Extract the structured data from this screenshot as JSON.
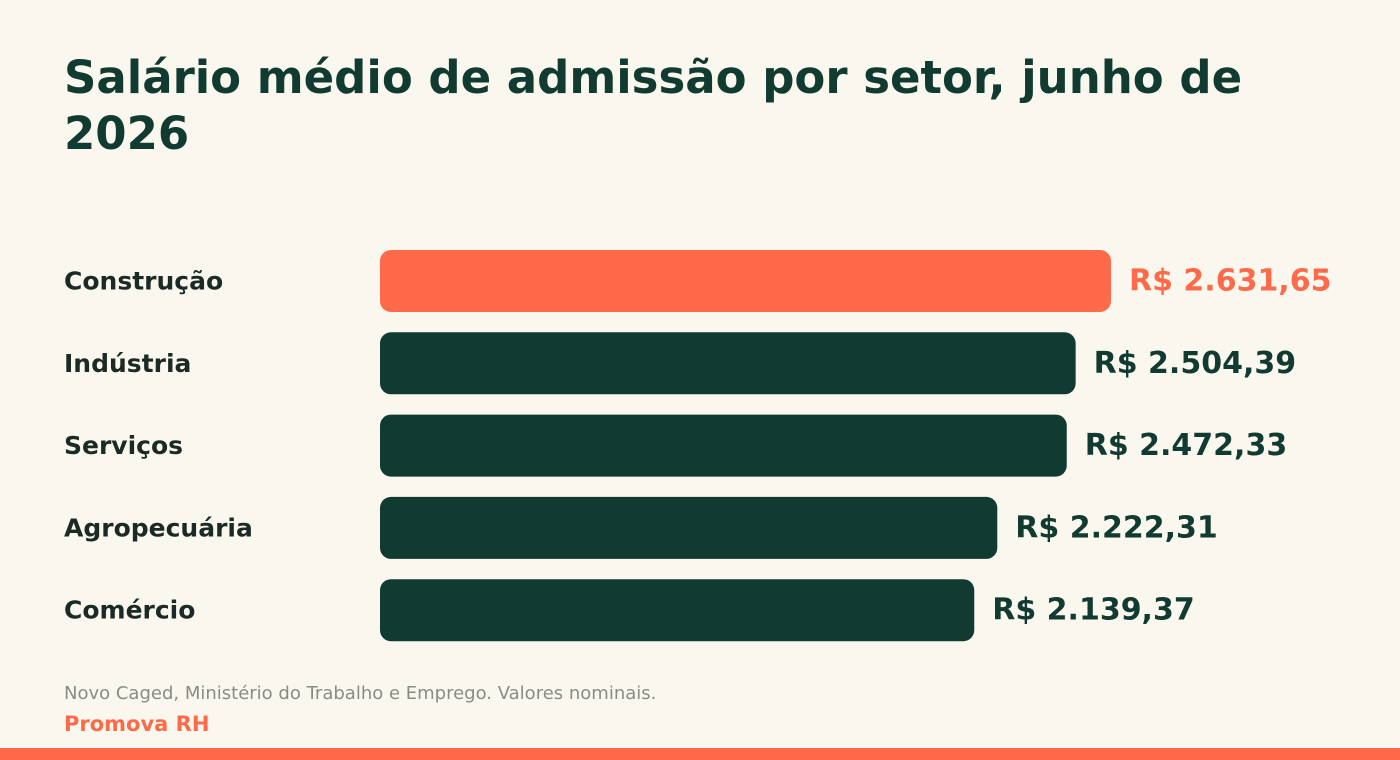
{
  "chart_data": {
    "type": "bar",
    "orientation": "horizontal",
    "title": "Salário médio de admissão por setor, junho de 2026",
    "categories": [
      "Construção",
      "Indústria",
      "Serviços",
      "Agropecuária",
      "Comércio"
    ],
    "values": [
      2631.65,
      2504.39,
      2472.33,
      2222.31,
      2139.37
    ],
    "value_labels": [
      "R$ 2.631,65",
      "R$ 2.504,39",
      "R$ 2.472,33",
      "R$ 2.222,31",
      "R$ 2.139,37"
    ],
    "highlight_index": 0,
    "xlim": [
      0,
      2631.65
    ],
    "grid": false,
    "legend": "none",
    "colors": {
      "highlight": "#ff6b4a",
      "default": "#113a31",
      "category_label": "#1b2a24"
    }
  },
  "footer": {
    "source": "Novo Caged, Ministério do Trabalho e Emprego. Valores nominais.",
    "brand": "Promova RH"
  },
  "colors": {
    "background": "#faf7ef",
    "title": "#113a31",
    "source_text": "#8b8b86",
    "accent": "#ff6b4a"
  }
}
